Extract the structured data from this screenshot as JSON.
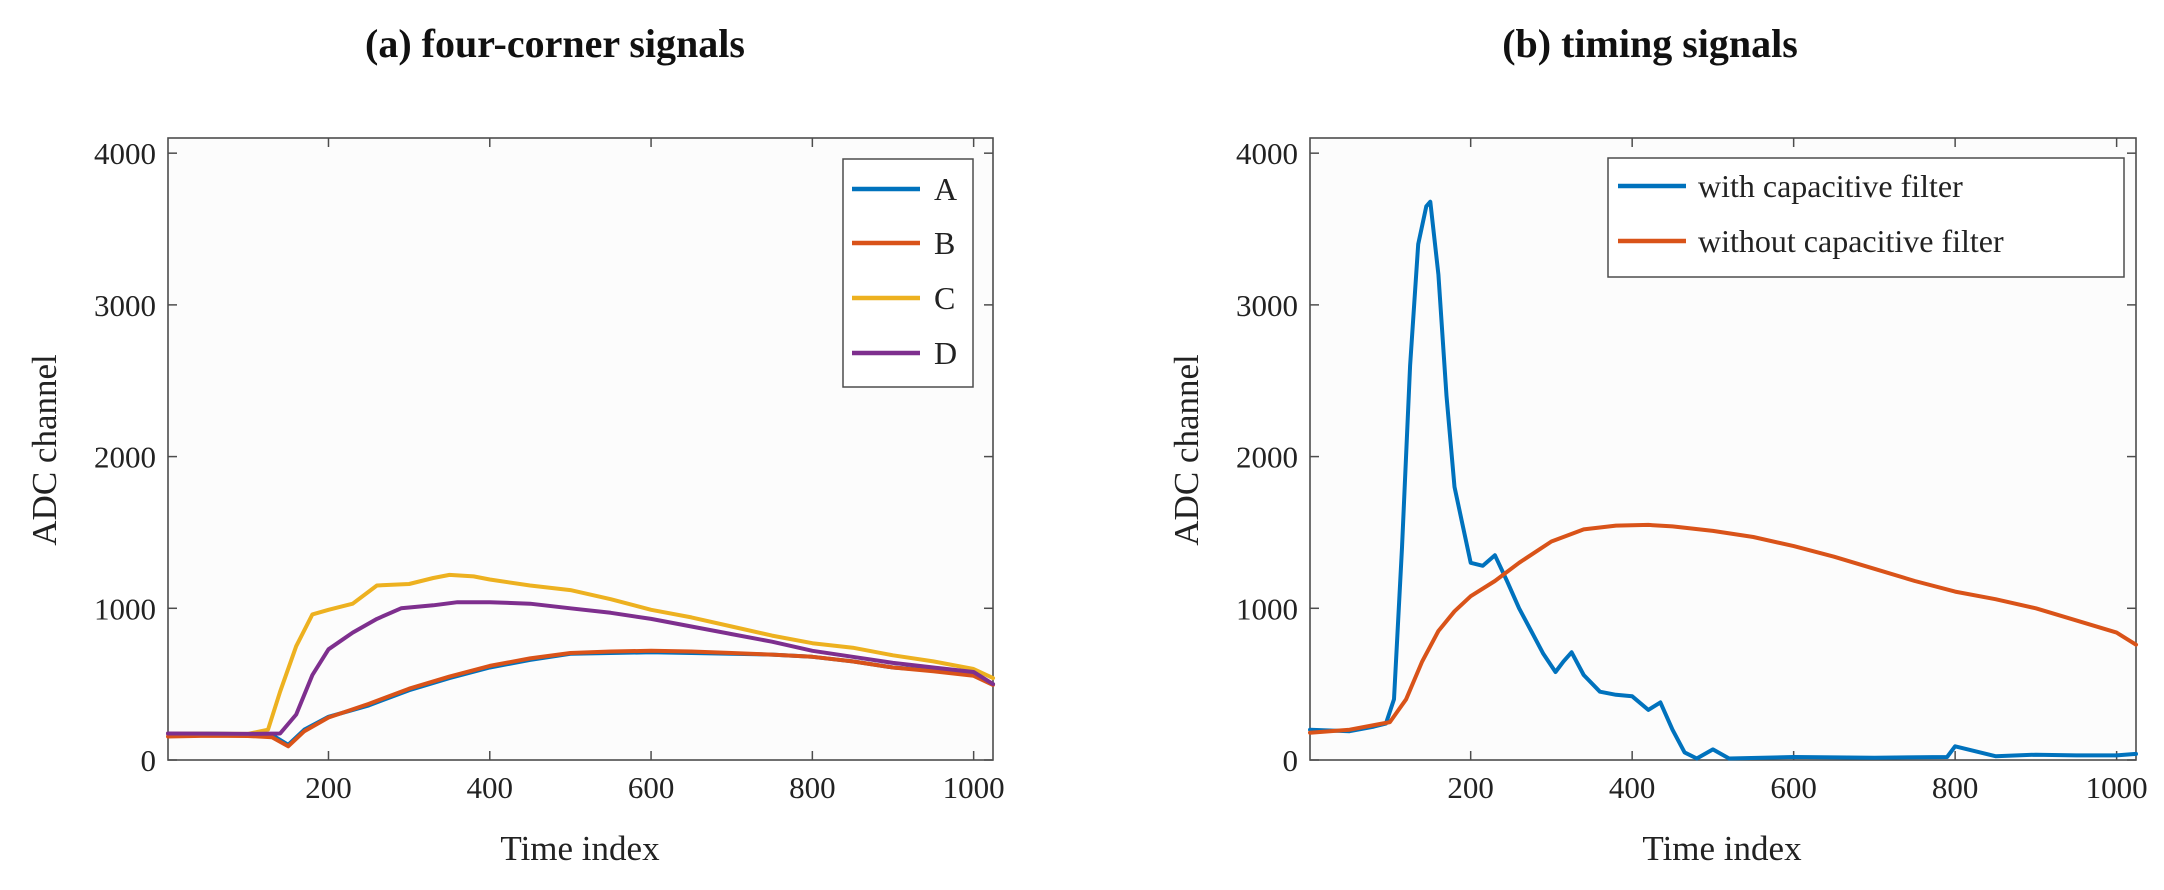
{
  "chart_data": [
    {
      "type": "line",
      "title": "(a) four-corner signals",
      "xlabel": "Time index",
      "ylabel": "ADC channel",
      "xlim": [
        1,
        1024
      ],
      "ylim": [
        0,
        4100
      ],
      "xticks": [
        200,
        400,
        600,
        800,
        1000
      ],
      "yticks": [
        0,
        1000,
        2000,
        3000,
        4000
      ],
      "legend_position": "top-right",
      "series": [
        {
          "name": "A",
          "color": "#0072BD",
          "x": [
            1,
            50,
            100,
            130,
            150,
            170,
            200,
            250,
            300,
            350,
            400,
            450,
            500,
            550,
            600,
            650,
            700,
            750,
            800,
            850,
            900,
            950,
            1000,
            1024
          ],
          "y": [
            175,
            175,
            170,
            165,
            100,
            200,
            285,
            360,
            460,
            540,
            610,
            660,
            700,
            705,
            710,
            705,
            700,
            695,
            680,
            650,
            610,
            590,
            560,
            500
          ]
        },
        {
          "name": "B",
          "color": "#D95319",
          "x": [
            1,
            50,
            100,
            130,
            150,
            170,
            200,
            250,
            300,
            350,
            400,
            450,
            500,
            550,
            600,
            650,
            700,
            750,
            800,
            850,
            900,
            950,
            1000,
            1024
          ],
          "y": [
            155,
            160,
            158,
            150,
            90,
            190,
            280,
            370,
            470,
            550,
            620,
            670,
            705,
            715,
            720,
            715,
            705,
            695,
            680,
            650,
            610,
            585,
            555,
            495
          ]
        },
        {
          "name": "C",
          "color": "#EDB120",
          "x": [
            1,
            100,
            125,
            140,
            160,
            180,
            200,
            230,
            260,
            300,
            330,
            350,
            380,
            400,
            450,
            500,
            550,
            600,
            650,
            700,
            750,
            800,
            850,
            900,
            950,
            1000,
            1024
          ],
          "y": [
            175,
            172,
            200,
            450,
            750,
            960,
            990,
            1030,
            1150,
            1160,
            1200,
            1220,
            1210,
            1190,
            1150,
            1120,
            1060,
            990,
            940,
            880,
            820,
            770,
            740,
            690,
            650,
            600,
            540
          ]
        },
        {
          "name": "D",
          "color": "#7E2F8E",
          "x": [
            1,
            100,
            140,
            160,
            180,
            200,
            230,
            260,
            290,
            330,
            360,
            400,
            450,
            500,
            550,
            600,
            650,
            700,
            750,
            800,
            850,
            900,
            950,
            1000,
            1024
          ],
          "y": [
            175,
            172,
            175,
            300,
            560,
            730,
            840,
            930,
            1000,
            1020,
            1040,
            1040,
            1030,
            1000,
            970,
            930,
            880,
            830,
            780,
            720,
            680,
            640,
            610,
            580,
            500
          ]
        }
      ]
    },
    {
      "type": "line",
      "title": "(b) timing signals",
      "xlabel": "Time index",
      "ylabel": "ADC channel",
      "xlim": [
        1,
        1024
      ],
      "ylim": [
        0,
        4100
      ],
      "xticks": [
        200,
        400,
        600,
        800,
        1000
      ],
      "yticks": [
        0,
        1000,
        2000,
        3000,
        4000
      ],
      "legend_position": "top-right",
      "series": [
        {
          "name": "with capacitive filter",
          "color": "#0072BD",
          "x": [
            1,
            50,
            80,
            95,
            105,
            115,
            125,
            135,
            145,
            150,
            160,
            170,
            180,
            190,
            200,
            215,
            230,
            245,
            260,
            275,
            290,
            305,
            315,
            325,
            340,
            360,
            380,
            400,
            420,
            435,
            450,
            465,
            480,
            500,
            520,
            600,
            700,
            790,
            800,
            850,
            900,
            950,
            1000,
            1024
          ],
          "y": [
            200,
            190,
            220,
            240,
            400,
            1400,
            2600,
            3400,
            3650,
            3680,
            3200,
            2400,
            1800,
            1550,
            1300,
            1280,
            1350,
            1180,
            1000,
            850,
            700,
            580,
            650,
            710,
            560,
            450,
            430,
            420,
            330,
            380,
            200,
            50,
            10,
            70,
            10,
            20,
            15,
            20,
            90,
            25,
            35,
            30,
            30,
            40
          ]
        },
        {
          "name": "without capacitive filter",
          "color": "#D95319",
          "x": [
            1,
            50,
            100,
            120,
            140,
            160,
            180,
            200,
            230,
            260,
            300,
            340,
            380,
            420,
            450,
            500,
            550,
            600,
            650,
            700,
            750,
            800,
            850,
            900,
            950,
            1000,
            1024
          ],
          "y": [
            180,
            200,
            250,
            400,
            650,
            850,
            980,
            1080,
            1180,
            1300,
            1440,
            1520,
            1545,
            1550,
            1540,
            1510,
            1470,
            1410,
            1340,
            1260,
            1180,
            1110,
            1060,
            1000,
            920,
            840,
            760
          ]
        }
      ]
    }
  ]
}
